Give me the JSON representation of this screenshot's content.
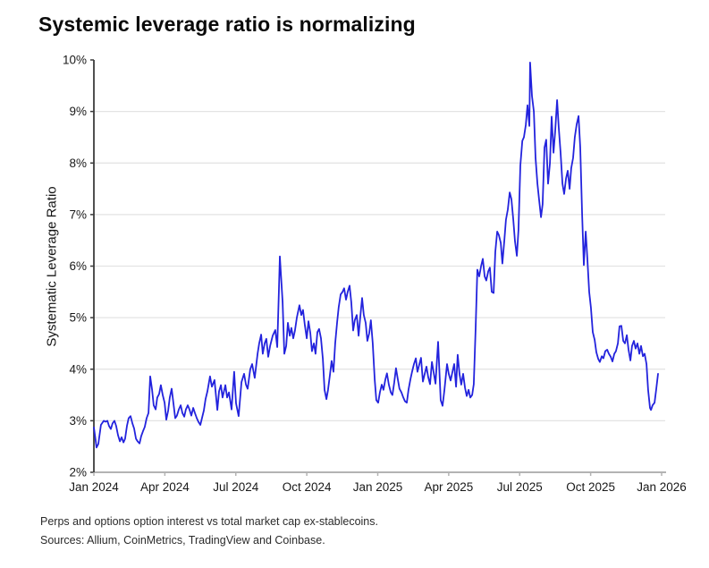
{
  "title": "Systemic leverage ratio is normalizing",
  "footnotes": {
    "line1": "Perps and options option interest vs total market cap ex-stablecoins.",
    "line2": "Sources: Allium, CoinMetrics, TradingView and Coinbase."
  },
  "colors": {
    "line": "#2323dd",
    "grid": "#e3e3e3",
    "y_axis": "#3c3c3c",
    "x_axis": "#b3b3b3",
    "tick_text": "#191919",
    "background": "#ffffff"
  },
  "chart_data": {
    "type": "line",
    "title": "Systemic leverage ratio is normalizing",
    "xlabel": "",
    "ylabel": "Systematic Leverage Ratio",
    "x_unit": "months since Jan 2024",
    "xlim": [
      0,
      24
    ],
    "ylim": [
      2,
      10
    ],
    "y_ticks": [
      2,
      3,
      4,
      5,
      6,
      7,
      8,
      9,
      10
    ],
    "y_tick_suffix": "%",
    "x_tick_months": [
      0,
      3,
      6,
      9,
      12,
      15,
      18,
      21,
      24
    ],
    "x_tick_labels": [
      "Jan 2024",
      "Apr 2024",
      "Jul 2024",
      "Oct 2024",
      "Jan 2025",
      "Apr 2025",
      "Jul 2025",
      "Oct 2025",
      "Jan 2026"
    ],
    "grid": "horizontal",
    "legend": "none",
    "series": [
      {
        "name": "Systematic Leverage Ratio",
        "points": [
          [
            0,
            2.87
          ],
          [
            0.08,
            2.6
          ],
          [
            0.11,
            2.48
          ],
          [
            0.19,
            2.55
          ],
          [
            0.3,
            2.92
          ],
          [
            0.42,
            3.0
          ],
          [
            0.49,
            2.98
          ],
          [
            0.57,
            3.0
          ],
          [
            0.64,
            2.9
          ],
          [
            0.72,
            2.84
          ],
          [
            0.79,
            2.95
          ],
          [
            0.87,
            3.0
          ],
          [
            0.94,
            2.9
          ],
          [
            1.02,
            2.72
          ],
          [
            1.1,
            2.6
          ],
          [
            1.17,
            2.68
          ],
          [
            1.25,
            2.58
          ],
          [
            1.32,
            2.65
          ],
          [
            1.4,
            2.9
          ],
          [
            1.47,
            3.05
          ],
          [
            1.55,
            3.09
          ],
          [
            1.63,
            2.95
          ],
          [
            1.7,
            2.85
          ],
          [
            1.78,
            2.65
          ],
          [
            1.85,
            2.6
          ],
          [
            1.93,
            2.56
          ],
          [
            2.0,
            2.7
          ],
          [
            2.08,
            2.8
          ],
          [
            2.15,
            2.88
          ],
          [
            2.23,
            3.05
          ],
          [
            2.31,
            3.15
          ],
          [
            2.38,
            3.86
          ],
          [
            2.46,
            3.6
          ],
          [
            2.53,
            3.3
          ],
          [
            2.61,
            3.22
          ],
          [
            2.68,
            3.45
          ],
          [
            2.76,
            3.52
          ],
          [
            2.83,
            3.69
          ],
          [
            2.91,
            3.5
          ],
          [
            2.99,
            3.35
          ],
          [
            3.06,
            3.02
          ],
          [
            3.14,
            3.2
          ],
          [
            3.21,
            3.45
          ],
          [
            3.29,
            3.62
          ],
          [
            3.36,
            3.35
          ],
          [
            3.44,
            3.05
          ],
          [
            3.51,
            3.1
          ],
          [
            3.59,
            3.22
          ],
          [
            3.67,
            3.3
          ],
          [
            3.74,
            3.15
          ],
          [
            3.82,
            3.08
          ],
          [
            3.89,
            3.22
          ],
          [
            3.97,
            3.3
          ],
          [
            4.04,
            3.22
          ],
          [
            4.12,
            3.1
          ],
          [
            4.2,
            3.25
          ],
          [
            4.27,
            3.15
          ],
          [
            4.35,
            3.05
          ],
          [
            4.42,
            2.98
          ],
          [
            4.5,
            2.92
          ],
          [
            4.57,
            3.05
          ],
          [
            4.65,
            3.2
          ],
          [
            4.72,
            3.42
          ],
          [
            4.8,
            3.57
          ],
          [
            4.91,
            3.86
          ],
          [
            4.99,
            3.66
          ],
          [
            5.1,
            3.79
          ],
          [
            5.22,
            3.21
          ],
          [
            5.29,
            3.57
          ],
          [
            5.37,
            3.69
          ],
          [
            5.44,
            3.45
          ],
          [
            5.56,
            3.69
          ],
          [
            5.63,
            3.45
          ],
          [
            5.71,
            3.55
          ],
          [
            5.82,
            3.22
          ],
          [
            5.93,
            3.95
          ],
          [
            6.01,
            3.34
          ],
          [
            6.12,
            3.09
          ],
          [
            6.24,
            3.75
          ],
          [
            6.35,
            3.91
          ],
          [
            6.43,
            3.7
          ],
          [
            6.5,
            3.62
          ],
          [
            6.61,
            4.0
          ],
          [
            6.69,
            4.1
          ],
          [
            6.8,
            3.83
          ],
          [
            6.92,
            4.3
          ],
          [
            6.99,
            4.5
          ],
          [
            7.07,
            4.67
          ],
          [
            7.14,
            4.3
          ],
          [
            7.22,
            4.5
          ],
          [
            7.29,
            4.59
          ],
          [
            7.37,
            4.24
          ],
          [
            7.45,
            4.45
          ],
          [
            7.56,
            4.65
          ],
          [
            7.67,
            4.76
          ],
          [
            7.75,
            4.43
          ],
          [
            7.82,
            5.5
          ],
          [
            7.86,
            6.19
          ],
          [
            7.9,
            5.9
          ],
          [
            7.98,
            5.3
          ],
          [
            8.05,
            4.3
          ],
          [
            8.13,
            4.45
          ],
          [
            8.2,
            4.9
          ],
          [
            8.28,
            4.65
          ],
          [
            8.35,
            4.8
          ],
          [
            8.43,
            4.6
          ],
          [
            8.5,
            4.75
          ],
          [
            8.58,
            5.0
          ],
          [
            8.69,
            5.24
          ],
          [
            8.77,
            5.05
          ],
          [
            8.84,
            5.15
          ],
          [
            8.92,
            4.85
          ],
          [
            9.0,
            4.6
          ],
          [
            9.07,
            4.93
          ],
          [
            9.15,
            4.7
          ],
          [
            9.22,
            4.35
          ],
          [
            9.3,
            4.5
          ],
          [
            9.37,
            4.3
          ],
          [
            9.45,
            4.72
          ],
          [
            9.52,
            4.78
          ],
          [
            9.6,
            4.6
          ],
          [
            9.68,
            4.2
          ],
          [
            9.75,
            3.6
          ],
          [
            9.83,
            3.42
          ],
          [
            9.9,
            3.6
          ],
          [
            9.98,
            3.9
          ],
          [
            10.05,
            4.16
          ],
          [
            10.13,
            3.95
          ],
          [
            10.2,
            4.5
          ],
          [
            10.28,
            4.9
          ],
          [
            10.35,
            5.2
          ],
          [
            10.43,
            5.45
          ],
          [
            10.51,
            5.5
          ],
          [
            10.58,
            5.57
          ],
          [
            10.66,
            5.35
          ],
          [
            10.73,
            5.5
          ],
          [
            10.81,
            5.62
          ],
          [
            10.88,
            5.3
          ],
          [
            10.96,
            4.75
          ],
          [
            11.03,
            4.95
          ],
          [
            11.11,
            5.05
          ],
          [
            11.19,
            4.65
          ],
          [
            11.26,
            5.0
          ],
          [
            11.34,
            5.38
          ],
          [
            11.41,
            5.05
          ],
          [
            11.49,
            4.9
          ],
          [
            11.56,
            4.55
          ],
          [
            11.64,
            4.7
          ],
          [
            11.71,
            4.95
          ],
          [
            11.79,
            4.5
          ],
          [
            11.87,
            3.8
          ],
          [
            11.94,
            3.4
          ],
          [
            12.02,
            3.35
          ],
          [
            12.09,
            3.55
          ],
          [
            12.17,
            3.7
          ],
          [
            12.24,
            3.6
          ],
          [
            12.32,
            3.8
          ],
          [
            12.39,
            3.92
          ],
          [
            12.47,
            3.7
          ],
          [
            12.55,
            3.55
          ],
          [
            12.62,
            3.5
          ],
          [
            12.7,
            3.75
          ],
          [
            12.77,
            4.02
          ],
          [
            12.85,
            3.8
          ],
          [
            12.92,
            3.62
          ],
          [
            13.0,
            3.55
          ],
          [
            13.08,
            3.45
          ],
          [
            13.15,
            3.38
          ],
          [
            13.23,
            3.35
          ],
          [
            13.3,
            3.6
          ],
          [
            13.38,
            3.8
          ],
          [
            13.45,
            3.95
          ],
          [
            13.53,
            4.1
          ],
          [
            13.61,
            4.21
          ],
          [
            13.68,
            3.95
          ],
          [
            13.76,
            4.1
          ],
          [
            13.83,
            4.22
          ],
          [
            13.91,
            3.76
          ],
          [
            13.98,
            3.9
          ],
          [
            14.06,
            4.05
          ],
          [
            14.13,
            3.85
          ],
          [
            14.21,
            3.71
          ],
          [
            14.29,
            4.14
          ],
          [
            14.36,
            3.95
          ],
          [
            14.44,
            3.72
          ],
          [
            14.55,
            4.53
          ],
          [
            14.66,
            3.4
          ],
          [
            14.74,
            3.29
          ],
          [
            14.82,
            3.6
          ],
          [
            14.93,
            4.1
          ],
          [
            15.0,
            3.91
          ],
          [
            15.08,
            3.78
          ],
          [
            15.16,
            3.95
          ],
          [
            15.23,
            4.1
          ],
          [
            15.31,
            3.66
          ],
          [
            15.38,
            4.28
          ],
          [
            15.46,
            3.9
          ],
          [
            15.53,
            3.7
          ],
          [
            15.61,
            3.91
          ],
          [
            15.69,
            3.64
          ],
          [
            15.76,
            3.48
          ],
          [
            15.84,
            3.6
          ],
          [
            15.91,
            3.45
          ],
          [
            15.99,
            3.5
          ],
          [
            16.06,
            3.71
          ],
          [
            16.14,
            4.8
          ],
          [
            16.21,
            5.93
          ],
          [
            16.29,
            5.8
          ],
          [
            16.37,
            6.0
          ],
          [
            16.44,
            6.14
          ],
          [
            16.52,
            5.8
          ],
          [
            16.59,
            5.72
          ],
          [
            16.67,
            5.9
          ],
          [
            16.74,
            5.97
          ],
          [
            16.82,
            5.5
          ],
          [
            16.9,
            5.48
          ],
          [
            16.97,
            6.28
          ],
          [
            17.05,
            6.67
          ],
          [
            17.12,
            6.6
          ],
          [
            17.2,
            6.45
          ],
          [
            17.27,
            6.05
          ],
          [
            17.35,
            6.5
          ],
          [
            17.42,
            6.9
          ],
          [
            17.5,
            7.1
          ],
          [
            17.58,
            7.43
          ],
          [
            17.65,
            7.3
          ],
          [
            17.73,
            6.9
          ],
          [
            17.8,
            6.48
          ],
          [
            17.88,
            6.2
          ],
          [
            17.95,
            6.7
          ],
          [
            18.03,
            7.95
          ],
          [
            18.11,
            8.43
          ],
          [
            18.18,
            8.5
          ],
          [
            18.26,
            8.74
          ],
          [
            18.33,
            9.12
          ],
          [
            18.41,
            8.72
          ],
          [
            18.44,
            9.95
          ],
          [
            18.52,
            9.3
          ],
          [
            18.6,
            9.0
          ],
          [
            18.67,
            8.1
          ],
          [
            18.75,
            7.6
          ],
          [
            18.82,
            7.3
          ],
          [
            18.9,
            6.95
          ],
          [
            18.97,
            7.2
          ],
          [
            19.05,
            8.3
          ],
          [
            19.12,
            8.45
          ],
          [
            19.2,
            7.6
          ],
          [
            19.28,
            8.0
          ],
          [
            19.35,
            8.9
          ],
          [
            19.43,
            8.2
          ],
          [
            19.5,
            8.6
          ],
          [
            19.58,
            9.22
          ],
          [
            19.65,
            8.7
          ],
          [
            19.73,
            8.2
          ],
          [
            19.81,
            7.6
          ],
          [
            19.88,
            7.4
          ],
          [
            19.96,
            7.7
          ],
          [
            20.03,
            7.85
          ],
          [
            20.11,
            7.5
          ],
          [
            20.18,
            7.9
          ],
          [
            20.26,
            8.1
          ],
          [
            20.33,
            8.5
          ],
          [
            20.41,
            8.75
          ],
          [
            20.49,
            8.91
          ],
          [
            20.56,
            8.3
          ],
          [
            20.64,
            7.0
          ],
          [
            20.71,
            6.02
          ],
          [
            20.79,
            6.67
          ],
          [
            20.86,
            6.16
          ],
          [
            20.94,
            5.5
          ],
          [
            21.01,
            5.2
          ],
          [
            21.09,
            4.72
          ],
          [
            21.17,
            4.57
          ],
          [
            21.24,
            4.33
          ],
          [
            21.32,
            4.2
          ],
          [
            21.39,
            4.14
          ],
          [
            21.47,
            4.25
          ],
          [
            21.54,
            4.21
          ],
          [
            21.62,
            4.35
          ],
          [
            21.7,
            4.38
          ],
          [
            21.77,
            4.3
          ],
          [
            21.85,
            4.24
          ],
          [
            21.92,
            4.15
          ],
          [
            22.0,
            4.3
          ],
          [
            22.07,
            4.35
          ],
          [
            22.15,
            4.5
          ],
          [
            22.22,
            4.83
          ],
          [
            22.3,
            4.84
          ],
          [
            22.38,
            4.55
          ],
          [
            22.45,
            4.5
          ],
          [
            22.53,
            4.66
          ],
          [
            22.6,
            4.38
          ],
          [
            22.68,
            4.17
          ],
          [
            22.75,
            4.45
          ],
          [
            22.83,
            4.55
          ],
          [
            22.9,
            4.4
          ],
          [
            22.98,
            4.5
          ],
          [
            23.06,
            4.3
          ],
          [
            23.13,
            4.45
          ],
          [
            23.21,
            4.25
          ],
          [
            23.28,
            4.3
          ],
          [
            23.36,
            4.1
          ],
          [
            23.43,
            3.6
          ],
          [
            23.51,
            3.25
          ],
          [
            23.55,
            3.21
          ],
          [
            23.62,
            3.3
          ],
          [
            23.7,
            3.35
          ],
          [
            23.77,
            3.6
          ],
          [
            23.85,
            3.91
          ]
        ]
      }
    ]
  }
}
